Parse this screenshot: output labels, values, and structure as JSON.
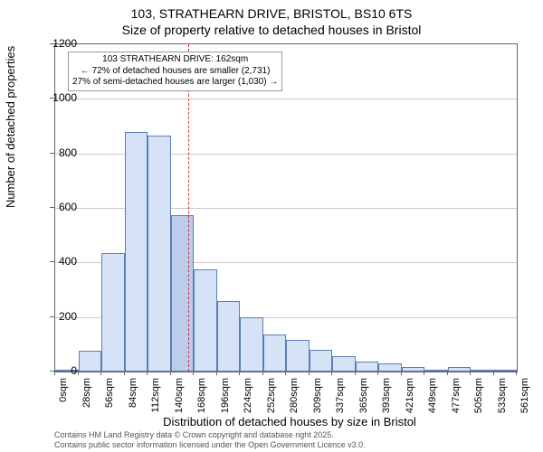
{
  "title_line1": "103, STRATHEARN DRIVE, BRISTOL, BS10 6TS",
  "title_line2": "Size of property relative to detached houses in Bristol",
  "chart": {
    "type": "histogram",
    "y_axis": {
      "label": "Number of detached properties",
      "min": 0,
      "max": 1200,
      "tick_step": 200,
      "ticks": [
        0,
        200,
        400,
        600,
        800,
        1000,
        1200
      ]
    },
    "x_axis": {
      "label": "Distribution of detached houses by size in Bristol",
      "labels": [
        "0sqm",
        "28sqm",
        "56sqm",
        "84sqm",
        "112sqm",
        "140sqm",
        "168sqm",
        "196sqm",
        "224sqm",
        "252sqm",
        "280sqm",
        "309sqm",
        "337sqm",
        "365sqm",
        "393sqm",
        "421sqm",
        "449sqm",
        "477sqm",
        "505sqm",
        "533sqm",
        "561sqm"
      ]
    },
    "bars": [
      {
        "value": 0
      },
      {
        "value": 75
      },
      {
        "value": 435
      },
      {
        "value": 880
      },
      {
        "value": 865
      },
      {
        "value": 575
      },
      {
        "value": 375
      },
      {
        "value": 260
      },
      {
        "value": 200
      },
      {
        "value": 135
      },
      {
        "value": 115
      },
      {
        "value": 80
      },
      {
        "value": 55
      },
      {
        "value": 35
      },
      {
        "value": 30
      },
      {
        "value": 15
      },
      {
        "value": 8
      },
      {
        "value": 15
      },
      {
        "value": 5
      },
      {
        "value": 5
      }
    ],
    "bar_fill": "#d6e2f5",
    "bar_stroke": "#5b7fb5",
    "highlight_bar_index": 5,
    "highlight_fill": "#bcccec",
    "grid_color": "#cccccc",
    "background": "#ffffff",
    "marker": {
      "position_sqm": 162,
      "max_sqm": 561,
      "color": "#cc3333",
      "annotation": {
        "line1": "103 STRATHEARN DRIVE: 162sqm",
        "line2": "← 72% of detached houses are smaller (2,731)",
        "line3": "27% of semi-detached houses are larger (1,030) →"
      }
    }
  },
  "footer": {
    "line1": "Contains HM Land Registry data © Crown copyright and database right 2025.",
    "line2": "Contains public sector information licensed under the Open Government Licence v3.0."
  },
  "fonts": {
    "title_size": 14,
    "axis_label_size": 13,
    "tick_size": 12,
    "annotation_size": 10,
    "footer_size": 9
  }
}
